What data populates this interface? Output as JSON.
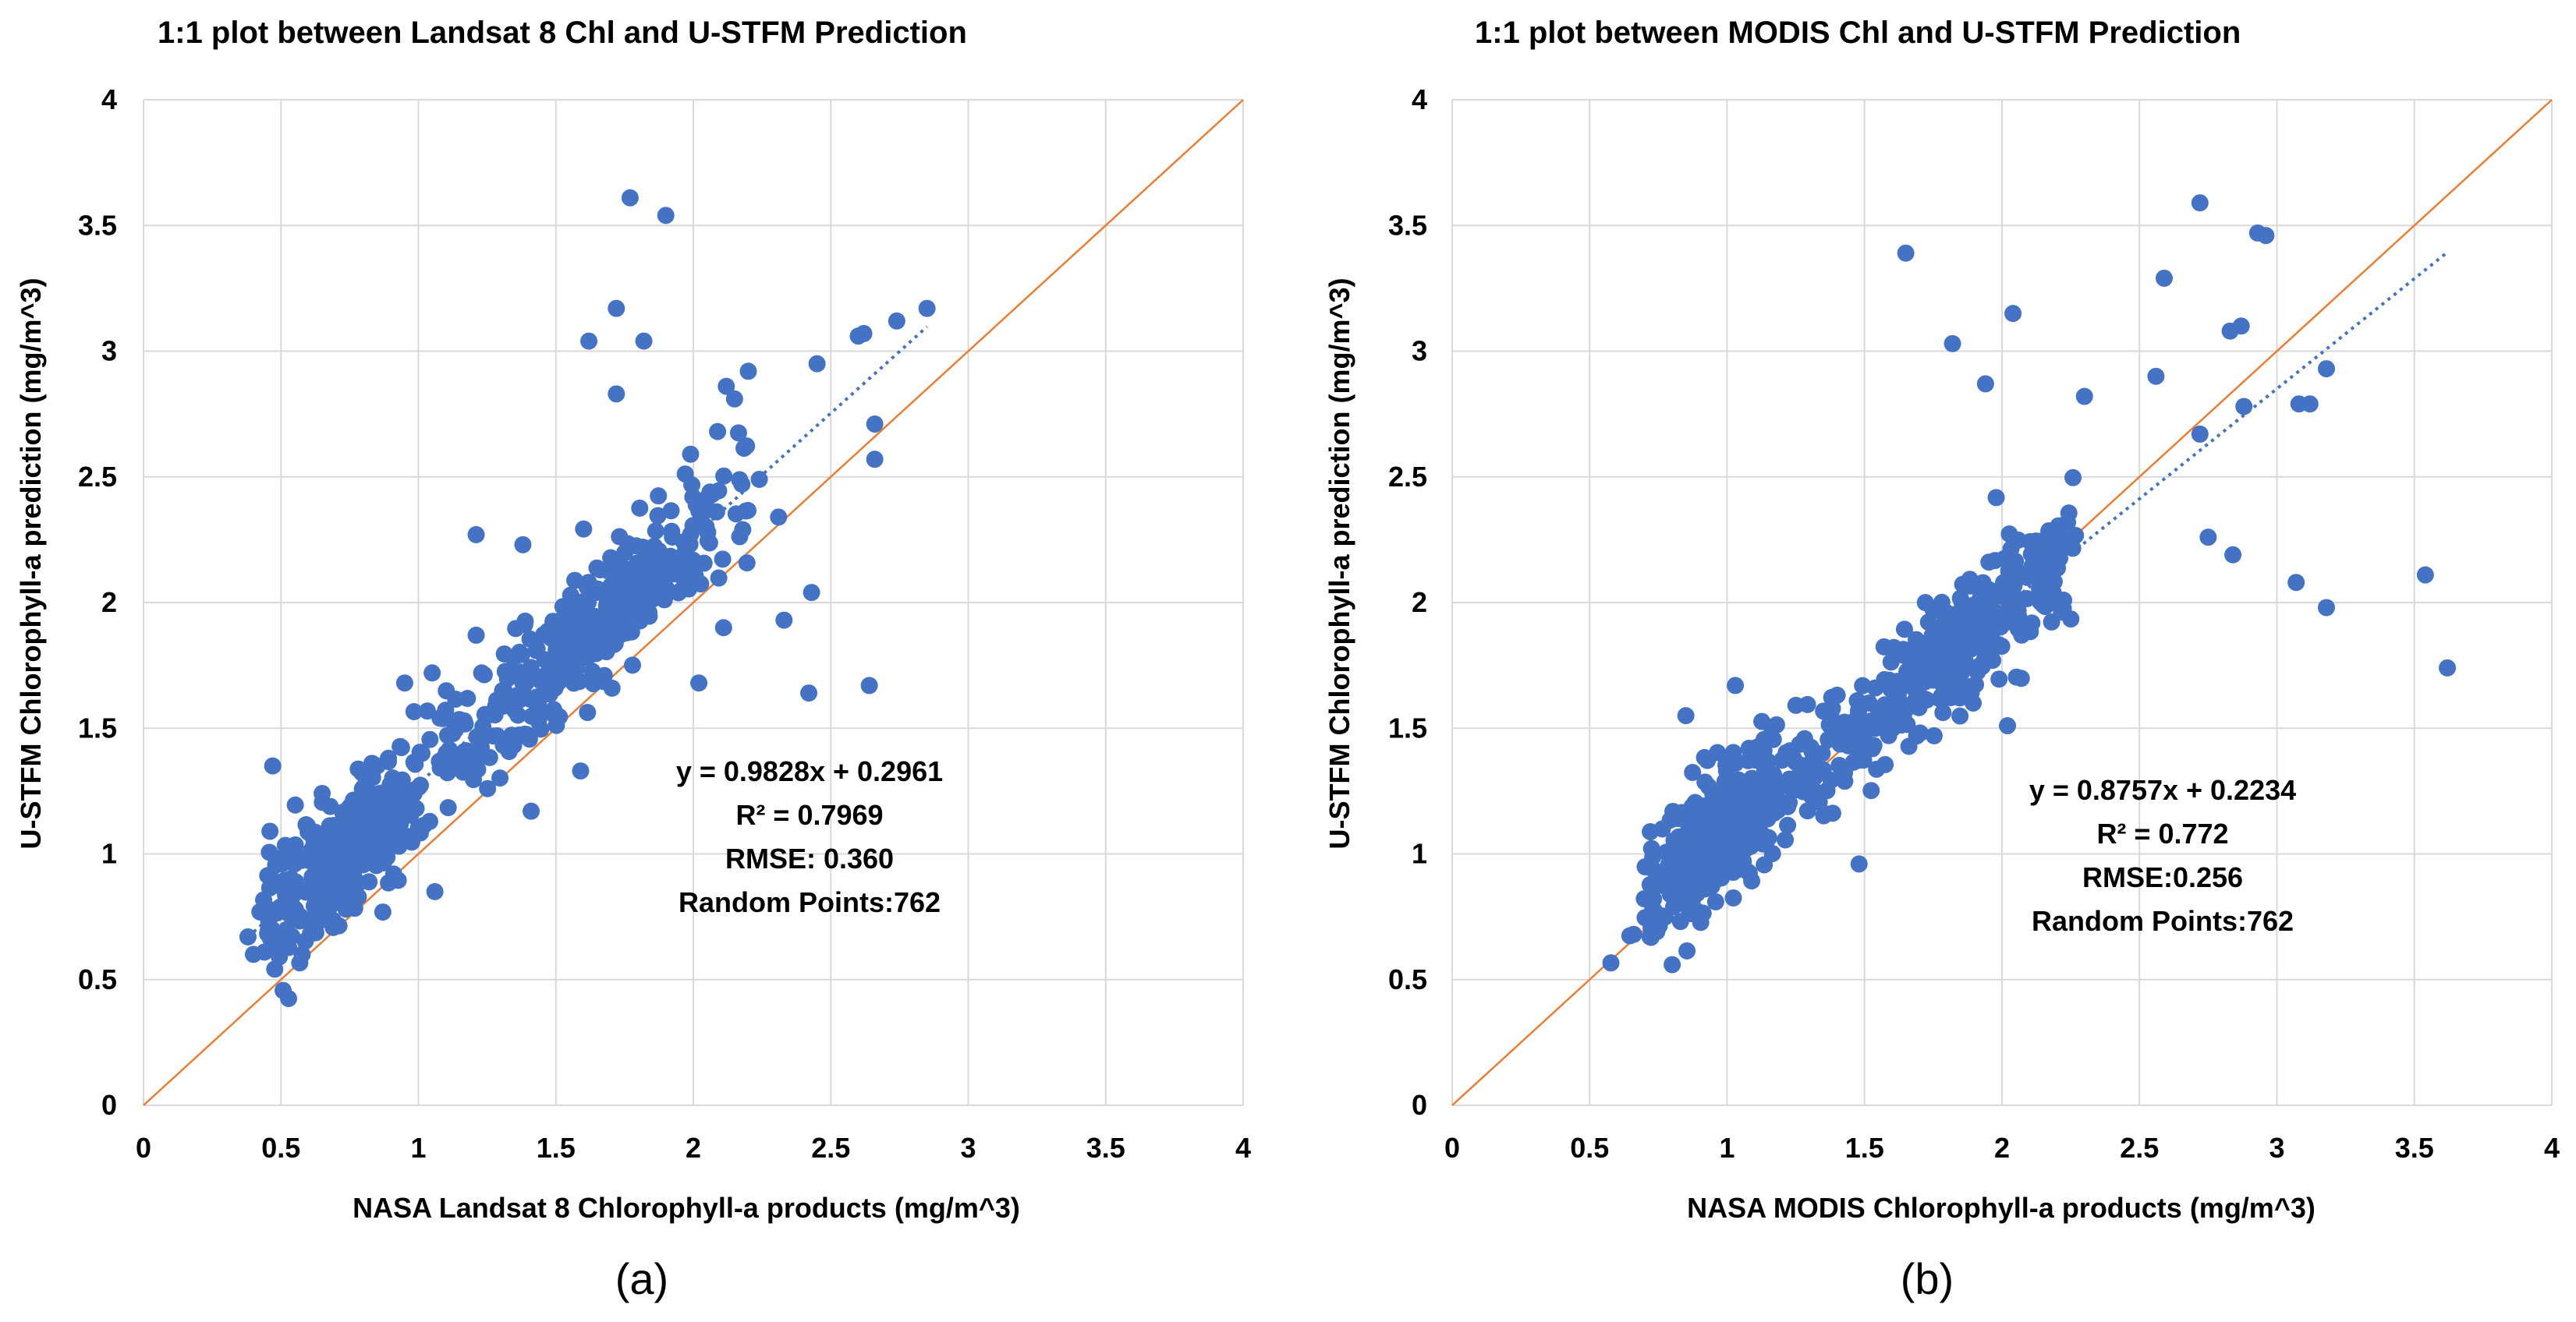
{
  "colors": {
    "points": "#4472C4",
    "trendline": "#4472C4",
    "one_to_one": "#ED7D31",
    "grid": "#D9D9D9"
  },
  "chart_data": [
    {
      "type": "scatter",
      "panel": "(a)",
      "title": "1:1 plot between Landsat 8 Chl and U-STFM Prediction",
      "xlabel": "NASA Landsat 8 Chlorophyll-a products (mg/m^3)",
      "ylabel": "U-STFM Chlorophyll-a prediction (mg/m^3)",
      "xlim": [
        0,
        4
      ],
      "ylim": [
        0,
        4
      ],
      "xticks": [
        "0",
        "0.5",
        "1",
        "1.5",
        "2",
        "2.5",
        "3",
        "3.5",
        "4"
      ],
      "yticks": [
        "0",
        "0.5",
        "1",
        "1.5",
        "2",
        "2.5",
        "3",
        "3.5",
        "4"
      ],
      "grid": true,
      "one_to_one_line": [
        [
          0,
          0
        ],
        [
          4,
          4
        ]
      ],
      "trendline": {
        "slope": 0.9828,
        "intercept": 0.2961,
        "x_range": [
          0.38,
          2.85
        ]
      },
      "annotation": [
        "y = 0.9828x + 0.2961",
        "R² = 0.7969",
        "RMSE: 0.360",
        "Random Points:762"
      ],
      "outliers": [
        [
          1.77,
          3.61
        ],
        [
          1.9,
          3.54
        ],
        [
          1.72,
          3.17
        ],
        [
          1.62,
          3.04
        ],
        [
          1.82,
          3.04
        ],
        [
          2.62,
          3.07
        ],
        [
          2.6,
          3.06
        ],
        [
          2.74,
          3.12
        ],
        [
          2.85,
          3.17
        ],
        [
          2.66,
          2.71
        ],
        [
          2.66,
          2.57
        ],
        [
          2.45,
          2.95
        ],
        [
          2.2,
          2.92
        ],
        [
          2.12,
          2.86
        ],
        [
          2.15,
          2.81
        ],
        [
          2.43,
          2.04
        ],
        [
          2.42,
          1.64
        ],
        [
          2.64,
          1.67
        ],
        [
          2.33,
          1.93
        ],
        [
          2.31,
          2.34
        ],
        [
          2.24,
          2.49
        ],
        [
          1.72,
          2.83
        ],
        [
          0.47,
          1.35
        ],
        [
          0.38,
          0.67
        ],
        [
          0.46,
          1.09
        ],
        [
          0.52,
          0.99
        ],
        [
          0.95,
          1.68
        ],
        [
          1.05,
          1.72
        ],
        [
          1.21,
          2.27
        ],
        [
          1.21,
          1.87
        ],
        [
          0.85,
          1.35
        ],
        [
          1.23,
          1.72
        ],
        [
          2.11,
          1.9
        ],
        [
          2.02,
          1.68
        ],
        [
          1.99,
          2.59
        ],
        [
          1.59,
          1.33
        ],
        [
          1.41,
          1.17
        ],
        [
          1.38,
          2.23
        ],
        [
          0.91,
          0.92
        ],
        [
          1.06,
          0.85
        ]
      ]
    },
    {
      "type": "scatter",
      "panel": "(b)",
      "title": "1:1 plot between MODIS Chl and U-STFM Prediction",
      "xlabel": "NASA MODIS Chlorophyll-a products (mg/m^3)",
      "ylabel": "U-STFM Chlorophyll-a prediction (mg/m^3)",
      "xlim": [
        0,
        4
      ],
      "ylim": [
        0,
        4
      ],
      "xticks": [
        "0",
        "0.5",
        "1",
        "1.5",
        "2",
        "2.5",
        "3",
        "3.5",
        "4"
      ],
      "yticks": [
        "0",
        "0.5",
        "1",
        "1.5",
        "2",
        "2.5",
        "3",
        "3.5",
        "4"
      ],
      "grid": true,
      "one_to_one_line": [
        [
          0,
          0
        ],
        [
          4,
          4
        ]
      ],
      "trendline": {
        "slope": 0.8757,
        "intercept": 0.2234,
        "x_range": [
          0.68,
          3.62
        ]
      },
      "annotation": [
        "y = 0.8757x + 0.2234",
        "R² = 0.772",
        "RMSE:0.256",
        "Random Points:762"
      ],
      "outliers": [
        [
          1.65,
          3.39
        ],
        [
          2.72,
          3.59
        ],
        [
          2.93,
          3.47
        ],
        [
          2.96,
          3.46
        ],
        [
          2.59,
          3.29
        ],
        [
          2.04,
          3.15
        ],
        [
          1.82,
          3.03
        ],
        [
          2.83,
          3.08
        ],
        [
          2.87,
          3.1
        ],
        [
          3.18,
          2.93
        ],
        [
          3.08,
          2.79
        ],
        [
          3.12,
          2.79
        ],
        [
          2.88,
          2.78
        ],
        [
          2.72,
          2.67
        ],
        [
          2.56,
          2.9
        ],
        [
          2.3,
          2.82
        ],
        [
          1.94,
          2.87
        ],
        [
          3.07,
          2.08
        ],
        [
          3.54,
          2.11
        ],
        [
          3.18,
          1.98
        ],
        [
          3.62,
          1.74
        ],
        [
          2.84,
          2.19
        ],
        [
          2.75,
          2.26
        ],
        [
          2.02,
          1.51
        ],
        [
          1.03,
          1.67
        ],
        [
          1.08,
          1.42
        ],
        [
          0.85,
          1.55
        ],
        [
          1.48,
          0.96
        ],
        [
          0.72,
          0.67
        ],
        [
          0.66,
          0.68
        ]
      ]
    }
  ],
  "captions": [
    "(a)",
    "(b)"
  ]
}
